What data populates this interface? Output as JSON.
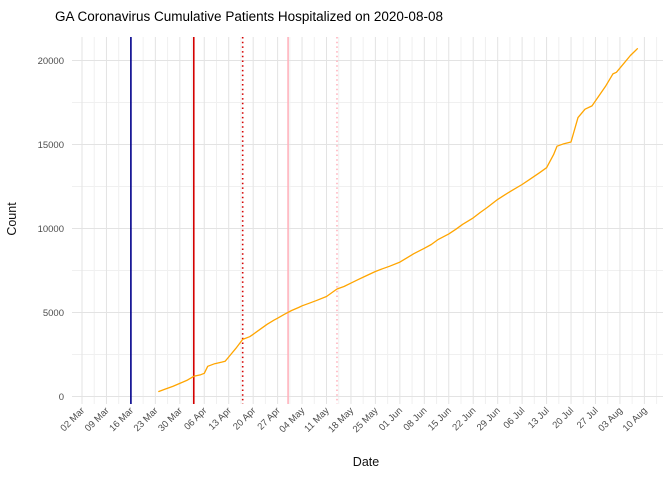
{
  "chart_data": {
    "type": "line",
    "title": "GA Coronavirus Cumulative Patients Hospitalized on 2020-08-08",
    "xlabel": "Date",
    "ylabel": "Count",
    "grid": true,
    "legend": "none",
    "ylim": [
      0,
      21500
    ],
    "y_breaks": [
      0,
      5000,
      10000,
      15000,
      20000
    ],
    "y_minor_breaks": [
      2500,
      7500,
      12500,
      17500
    ],
    "x_ticks": [
      {
        "date": "2020-03-02",
        "label": "02 Mar"
      },
      {
        "date": "2020-03-09",
        "label": "09 Mar"
      },
      {
        "date": "2020-03-16",
        "label": "16 Mar"
      },
      {
        "date": "2020-03-23",
        "label": "23 Mar"
      },
      {
        "date": "2020-03-30",
        "label": "30 Mar"
      },
      {
        "date": "2020-04-06",
        "label": "06 Apr"
      },
      {
        "date": "2020-04-13",
        "label": "13 Apr"
      },
      {
        "date": "2020-04-20",
        "label": "20 Apr"
      },
      {
        "date": "2020-04-27",
        "label": "27 Apr"
      },
      {
        "date": "2020-05-04",
        "label": "04 May"
      },
      {
        "date": "2020-05-11",
        "label": "11 May"
      },
      {
        "date": "2020-05-18",
        "label": "18 May"
      },
      {
        "date": "2020-05-25",
        "label": "25 May"
      },
      {
        "date": "2020-06-01",
        "label": "01 Jun"
      },
      {
        "date": "2020-06-08",
        "label": "08 Jun"
      },
      {
        "date": "2020-06-15",
        "label": "15 Jun"
      },
      {
        "date": "2020-06-22",
        "label": "22 Jun"
      },
      {
        "date": "2020-06-29",
        "label": "29 Jun"
      },
      {
        "date": "2020-07-06",
        "label": "06 Jul"
      },
      {
        "date": "2020-07-13",
        "label": "13 Jul"
      },
      {
        "date": "2020-07-20",
        "label": "20 Jul"
      },
      {
        "date": "2020-07-27",
        "label": "27 Jul"
      },
      {
        "date": "2020-08-03",
        "label": "03 Aug"
      },
      {
        "date": "2020-08-10",
        "label": "10 Aug"
      }
    ],
    "vlines": [
      {
        "date": "2020-03-16",
        "color": "#00008b",
        "style": "solid"
      },
      {
        "date": "2020-04-03",
        "color": "#d40000",
        "style": "solid"
      },
      {
        "date": "2020-04-17",
        "color": "#d40000",
        "style": "dotted"
      },
      {
        "date": "2020-04-30",
        "color": "#ffb3bd",
        "style": "solid"
      },
      {
        "date": "2020-05-14",
        "color": "#ffb3bd",
        "style": "dotted"
      }
    ],
    "series": [
      {
        "name": "cumulative-hospitalized",
        "color": "#ffa500",
        "points": [
          [
            "2020-03-24",
            300
          ],
          [
            "2020-03-26",
            450
          ],
          [
            "2020-03-28",
            600
          ],
          [
            "2020-03-30",
            780
          ],
          [
            "2020-04-01",
            960
          ],
          [
            "2020-04-03",
            1200
          ],
          [
            "2020-04-05",
            1300
          ],
          [
            "2020-04-06",
            1380
          ],
          [
            "2020-04-07",
            1800
          ],
          [
            "2020-04-09",
            1950
          ],
          [
            "2020-04-11",
            2050
          ],
          [
            "2020-04-12",
            2100
          ],
          [
            "2020-04-13",
            2350
          ],
          [
            "2020-04-15",
            2850
          ],
          [
            "2020-04-17",
            3400
          ],
          [
            "2020-04-19",
            3560
          ],
          [
            "2020-04-20",
            3700
          ],
          [
            "2020-04-22",
            4000
          ],
          [
            "2020-04-24",
            4300
          ],
          [
            "2020-04-26",
            4550
          ],
          [
            "2020-04-27",
            4660
          ],
          [
            "2020-04-29",
            4900
          ],
          [
            "2020-05-01",
            5120
          ],
          [
            "2020-05-03",
            5300
          ],
          [
            "2020-05-04",
            5400
          ],
          [
            "2020-05-06",
            5550
          ],
          [
            "2020-05-08",
            5700
          ],
          [
            "2020-05-11",
            5950
          ],
          [
            "2020-05-13",
            6250
          ],
          [
            "2020-05-14",
            6400
          ],
          [
            "2020-05-16",
            6550
          ],
          [
            "2020-05-18",
            6750
          ],
          [
            "2020-05-20",
            6950
          ],
          [
            "2020-05-22",
            7150
          ],
          [
            "2020-05-25",
            7440
          ],
          [
            "2020-05-27",
            7600
          ],
          [
            "2020-05-29",
            7750
          ],
          [
            "2020-06-01",
            8000
          ],
          [
            "2020-06-03",
            8250
          ],
          [
            "2020-06-05",
            8500
          ],
          [
            "2020-06-08",
            8820
          ],
          [
            "2020-06-10",
            9050
          ],
          [
            "2020-06-12",
            9350
          ],
          [
            "2020-06-15",
            9680
          ],
          [
            "2020-06-17",
            9950
          ],
          [
            "2020-06-19",
            10250
          ],
          [
            "2020-06-22",
            10630
          ],
          [
            "2020-06-24",
            10950
          ],
          [
            "2020-06-26",
            11250
          ],
          [
            "2020-06-29",
            11730
          ],
          [
            "2020-07-01",
            12000
          ],
          [
            "2020-07-03",
            12250
          ],
          [
            "2020-07-06",
            12620
          ],
          [
            "2020-07-08",
            12900
          ],
          [
            "2020-07-11",
            13320
          ],
          [
            "2020-07-13",
            13620
          ],
          [
            "2020-07-15",
            14400
          ],
          [
            "2020-07-16",
            14900
          ],
          [
            "2020-07-18",
            15050
          ],
          [
            "2020-07-20",
            15150
          ],
          [
            "2020-07-22",
            16600
          ],
          [
            "2020-07-24",
            17100
          ],
          [
            "2020-07-26",
            17300
          ],
          [
            "2020-07-28",
            17900
          ],
          [
            "2020-07-30",
            18500
          ],
          [
            "2020-08-01",
            19200
          ],
          [
            "2020-08-02",
            19300
          ],
          [
            "2020-08-04",
            19800
          ],
          [
            "2020-08-06",
            20300
          ],
          [
            "2020-08-08",
            20700
          ]
        ]
      }
    ]
  }
}
